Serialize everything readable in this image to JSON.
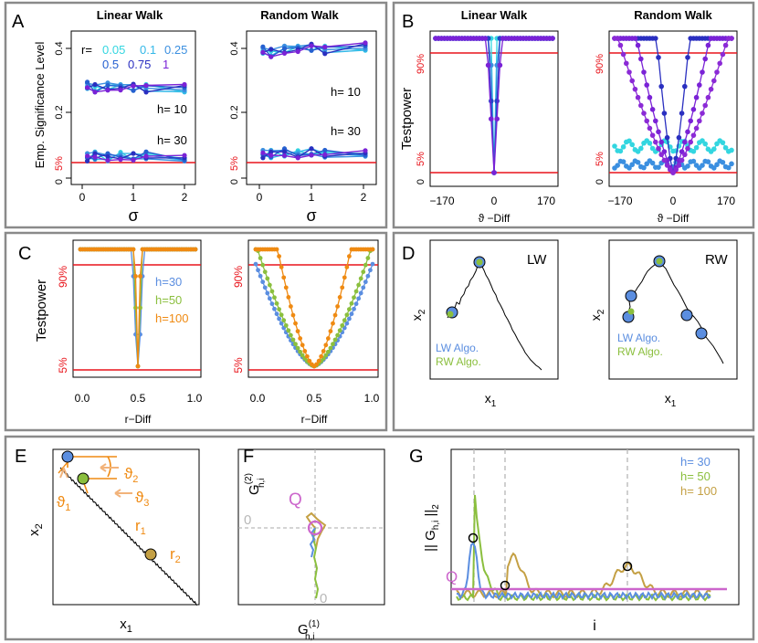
{
  "colors": {
    "red": "#e8141b",
    "cyan": "#33d6e0",
    "skyblue": "#3b8fe0",
    "blue": "#2244c8",
    "navy": "#1b2aa8",
    "purple": "#7a22d6",
    "violet": "#8b2ad6",
    "lw_algo": "#5b8ee0",
    "rw_algo": "#8bbf3e",
    "orange": "#ef8a12",
    "olive": "#c4a044",
    "pink": "#cc66cc",
    "frame": "#8a8a8a"
  },
  "panels": {
    "A": {
      "letter": "A",
      "titles": [
        "Linear Walk",
        "Random Walk"
      ],
      "ylabel": "Emp. Significance Level",
      "xlabel": "σ",
      "yticks": [
        "0",
        "0.2",
        "0.4"
      ],
      "pct5": "5%",
      "xticks": [
        "0",
        "1",
        "2"
      ],
      "legend_prefix": "r=",
      "legend_r": [
        "0.05",
        "0.1",
        "0.25",
        "0.5",
        "0.75",
        "1"
      ],
      "h10": "h= 10",
      "h30": "h= 30"
    },
    "B": {
      "letter": "B",
      "titles": [
        "Linear Walk",
        "Random Walk"
      ],
      "ylabel": "Testpower",
      "xlabel": "ϑ −Diff",
      "xticks": [
        "−170",
        "0",
        "170"
      ],
      "pct90": "90%",
      "pct5": "5%",
      "zero": "0"
    },
    "C": {
      "letter": "C",
      "ylabel": "Testpower",
      "xlabel": "r−Diff",
      "xticks": [
        "0.0",
        "0.5",
        "1.0"
      ],
      "pct90": "90%",
      "pct5": "5%",
      "legend": [
        "h=30",
        "h=50",
        "h=100"
      ]
    },
    "D": {
      "letter": "D",
      "tags": [
        "LW",
        "RW"
      ],
      "ylabel": "x",
      "ylabel_sub": "2",
      "xlabel": "x",
      "xlabel_sub": "1",
      "legend": [
        "LW Algo.",
        "RW Algo."
      ]
    },
    "E": {
      "letter": "E",
      "ylabel": "x",
      "ylabel_sub": "2",
      "xlabel": "x",
      "xlabel_sub": "1",
      "theta1": "ϑ",
      "theta1_sub": "1",
      "theta2": "ϑ",
      "theta2_sub": "2",
      "theta3": "ϑ",
      "theta3_sub": "3",
      "r1": "r",
      "r1_sub": "1",
      "r2": "r",
      "r2_sub": "2"
    },
    "F": {
      "letter": "F",
      "ylabel": "G",
      "ylabel_sup": "(2)",
      "ylabel_sub": "h,i",
      "xlabel": "G",
      "xlabel_sup": "(1)",
      "xlabel_sub": "h,i",
      "q": "Q",
      "zero_left": "0",
      "zero_bottom": "0"
    },
    "G": {
      "letter": "G",
      "ylabel": "|| G",
      "ylabel_sub": "h,i",
      "ylabel_tail": " ||",
      "ylabel_tail_sub": "2",
      "xlabel": "i",
      "q": "Q",
      "legend": [
        "h= 30",
        "h= 50",
        "h= 100"
      ]
    }
  },
  "chart_data": [
    {
      "panel": "A-left",
      "type": "line",
      "title": "Linear Walk",
      "xlabel": "σ",
      "ylabel": "Emp. Significance Level",
      "x": [
        0.1,
        0.25,
        0.5,
        0.75,
        1.0,
        1.25,
        2.0
      ],
      "ylim": [
        0,
        0.45
      ],
      "series": [
        {
          "name": "h= 10",
          "values": [
            0.29,
            0.28,
            0.285,
            0.28,
            0.285,
            0.28,
            0.28
          ]
        },
        {
          "name": "h= 30",
          "values": [
            0.065,
            0.07,
            0.065,
            0.07,
            0.065,
            0.07,
            0.065
          ]
        }
      ]
    },
    {
      "panel": "A-right",
      "type": "line",
      "title": "Random Walk",
      "xlabel": "σ",
      "x": [
        0.1,
        0.25,
        0.5,
        0.75,
        1.0,
        1.25,
        2.0
      ],
      "ylim": [
        0,
        0.45
      ],
      "series": [
        {
          "name": "h= 10",
          "values": [
            0.4,
            0.39,
            0.4,
            0.4,
            0.41,
            0.4,
            0.41
          ]
        },
        {
          "name": "h= 30",
          "values": [
            0.075,
            0.075,
            0.08,
            0.075,
            0.08,
            0.075,
            0.08
          ]
        }
      ]
    },
    {
      "panel": "B-left",
      "type": "line",
      "title": "Linear Walk",
      "xlabel": "ϑ −Diff",
      "ylabel": "Testpower",
      "xlim": [
        -180,
        180
      ],
      "ylim": [
        0,
        1
      ]
    },
    {
      "panel": "B-right",
      "type": "line",
      "title": "Random Walk",
      "xlabel": "ϑ −Diff",
      "xlim": [
        -180,
        180
      ],
      "ylim": [
        0,
        1
      ]
    },
    {
      "panel": "C",
      "type": "line",
      "xlabel": "r−Diff",
      "ylabel": "Testpower",
      "xlim": [
        0,
        1
      ],
      "ylim": [
        0,
        1
      ],
      "series": [
        {
          "name": "h=30"
        },
        {
          "name": "h=50"
        },
        {
          "name": "h=100"
        }
      ]
    },
    {
      "panel": "G",
      "type": "line",
      "xlabel": "i",
      "series": [
        {
          "name": "h= 30"
        },
        {
          "name": "h= 50"
        },
        {
          "name": "h= 100"
        }
      ]
    }
  ]
}
